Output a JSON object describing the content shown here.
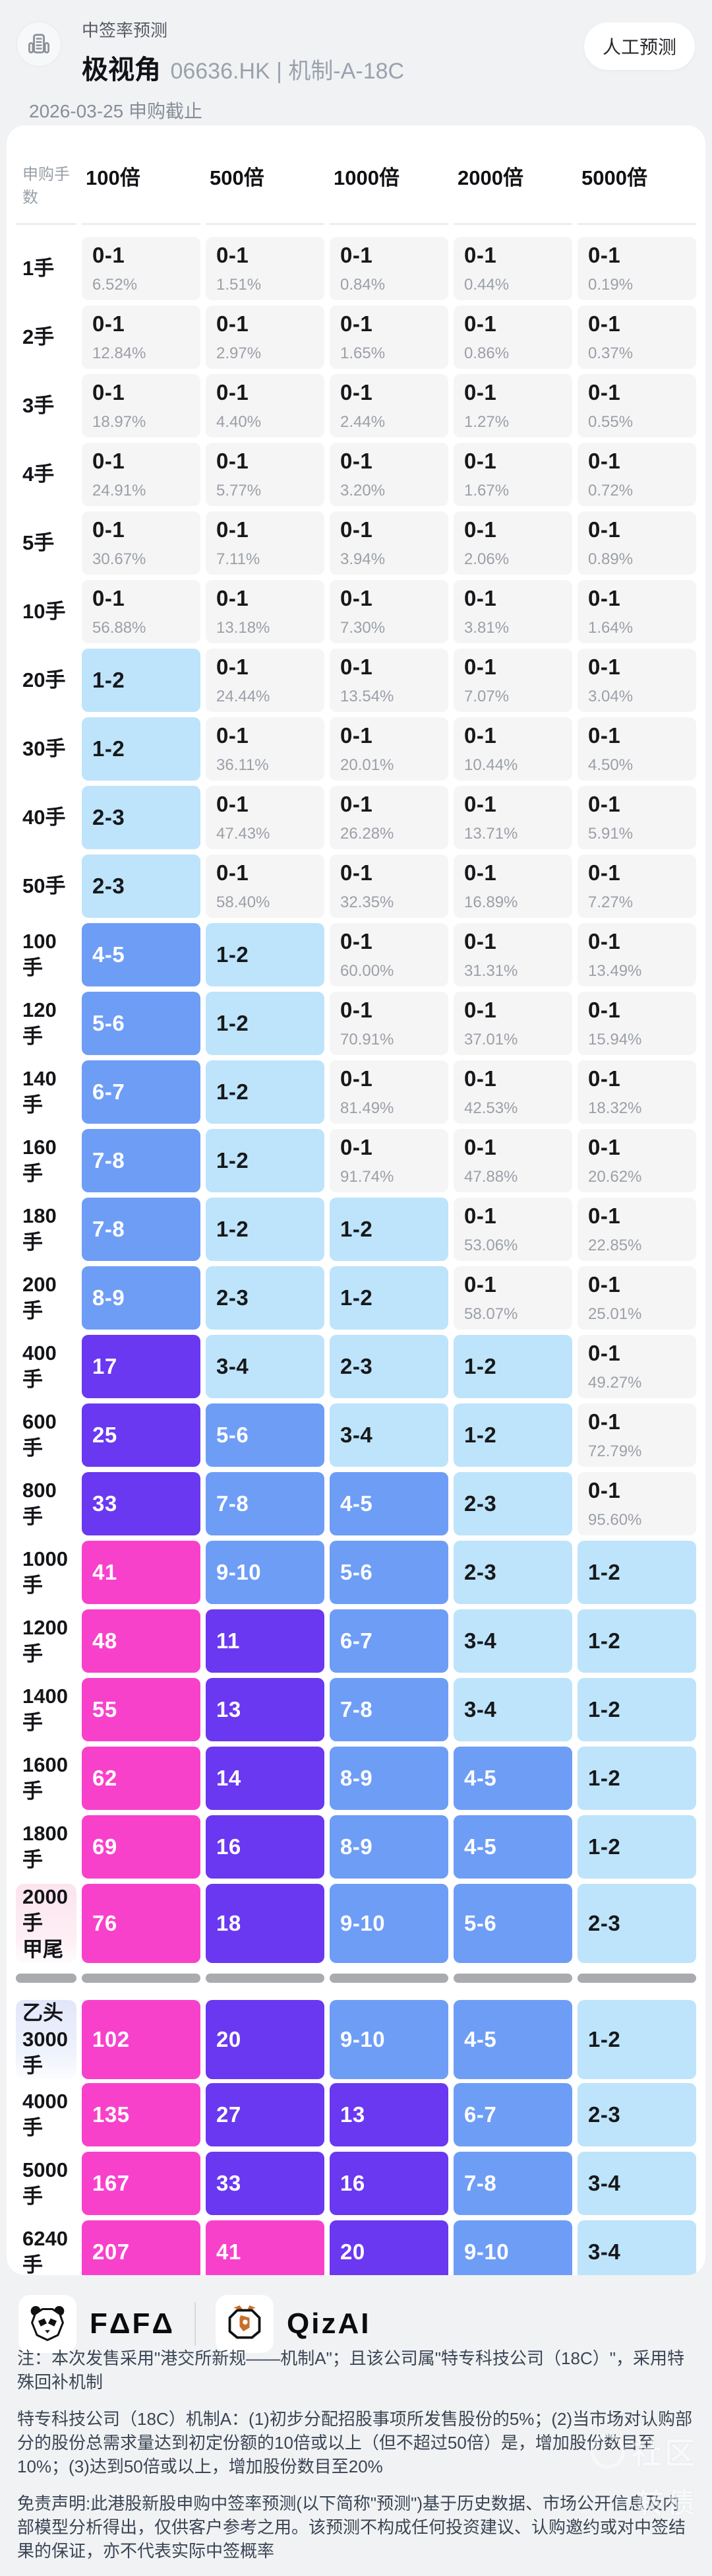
{
  "header": {
    "category": "中签率预测",
    "stock_name": "极视角",
    "stock_info": "06636.HK | 机制-A-18C",
    "deadline": "2026-03-25 申购截止",
    "badge": "人工预测"
  },
  "table": {
    "row_header_label": "申购手数",
    "columns": [
      "100倍",
      "500倍",
      "1000倍",
      "2000倍",
      "5000倍"
    ],
    "rows": [
      {
        "label": [
          "1手"
        ],
        "cells": [
          [
            "0-1",
            "6.52%",
            "g"
          ],
          [
            "0-1",
            "1.51%",
            "g"
          ],
          [
            "0-1",
            "0.84%",
            "g"
          ],
          [
            "0-1",
            "0.44%",
            "g"
          ],
          [
            "0-1",
            "0.19%",
            "g"
          ]
        ]
      },
      {
        "label": [
          "2手"
        ],
        "cells": [
          [
            "0-1",
            "12.84%",
            "g"
          ],
          [
            "0-1",
            "2.97%",
            "g"
          ],
          [
            "0-1",
            "1.65%",
            "g"
          ],
          [
            "0-1",
            "0.86%",
            "g"
          ],
          [
            "0-1",
            "0.37%",
            "g"
          ]
        ]
      },
      {
        "label": [
          "3手"
        ],
        "cells": [
          [
            "0-1",
            "18.97%",
            "g"
          ],
          [
            "0-1",
            "4.40%",
            "g"
          ],
          [
            "0-1",
            "2.44%",
            "g"
          ],
          [
            "0-1",
            "1.27%",
            "g"
          ],
          [
            "0-1",
            "0.55%",
            "g"
          ]
        ]
      },
      {
        "label": [
          "4手"
        ],
        "cells": [
          [
            "0-1",
            "24.91%",
            "g"
          ],
          [
            "0-1",
            "5.77%",
            "g"
          ],
          [
            "0-1",
            "3.20%",
            "g"
          ],
          [
            "0-1",
            "1.67%",
            "g"
          ],
          [
            "0-1",
            "0.72%",
            "g"
          ]
        ]
      },
      {
        "label": [
          "5手"
        ],
        "cells": [
          [
            "0-1",
            "30.67%",
            "g"
          ],
          [
            "0-1",
            "7.11%",
            "g"
          ],
          [
            "0-1",
            "3.94%",
            "g"
          ],
          [
            "0-1",
            "2.06%",
            "g"
          ],
          [
            "0-1",
            "0.89%",
            "g"
          ]
        ]
      },
      {
        "label": [
          "10手"
        ],
        "cells": [
          [
            "0-1",
            "56.88%",
            "g"
          ],
          [
            "0-1",
            "13.18%",
            "g"
          ],
          [
            "0-1",
            "7.30%",
            "g"
          ],
          [
            "0-1",
            "3.81%",
            "g"
          ],
          [
            "0-1",
            "1.64%",
            "g"
          ]
        ]
      },
      {
        "label": [
          "20手"
        ],
        "cells": [
          [
            "1-2",
            "",
            "lb"
          ],
          [
            "0-1",
            "24.44%",
            "g"
          ],
          [
            "0-1",
            "13.54%",
            "g"
          ],
          [
            "0-1",
            "7.07%",
            "g"
          ],
          [
            "0-1",
            "3.04%",
            "g"
          ]
        ]
      },
      {
        "label": [
          "30手"
        ],
        "cells": [
          [
            "1-2",
            "",
            "lb"
          ],
          [
            "0-1",
            "36.11%",
            "g"
          ],
          [
            "0-1",
            "20.01%",
            "g"
          ],
          [
            "0-1",
            "10.44%",
            "g"
          ],
          [
            "0-1",
            "4.50%",
            "g"
          ]
        ]
      },
      {
        "label": [
          "40手"
        ],
        "cells": [
          [
            "2-3",
            "",
            "lb"
          ],
          [
            "0-1",
            "47.43%",
            "g"
          ],
          [
            "0-1",
            "26.28%",
            "g"
          ],
          [
            "0-1",
            "13.71%",
            "g"
          ],
          [
            "0-1",
            "5.91%",
            "g"
          ]
        ]
      },
      {
        "label": [
          "50手"
        ],
        "cells": [
          [
            "2-3",
            "",
            "lb"
          ],
          [
            "0-1",
            "58.40%",
            "g"
          ],
          [
            "0-1",
            "32.35%",
            "g"
          ],
          [
            "0-1",
            "16.89%",
            "g"
          ],
          [
            "0-1",
            "7.27%",
            "g"
          ]
        ]
      },
      {
        "label": [
          "100手"
        ],
        "cells": [
          [
            "4-5",
            "",
            "mb"
          ],
          [
            "1-2",
            "",
            "lb"
          ],
          [
            "0-1",
            "60.00%",
            "g"
          ],
          [
            "0-1",
            "31.31%",
            "g"
          ],
          [
            "0-1",
            "13.49%",
            "g"
          ]
        ]
      },
      {
        "label": [
          "120手"
        ],
        "cells": [
          [
            "5-6",
            "",
            "mb"
          ],
          [
            "1-2",
            "",
            "lb"
          ],
          [
            "0-1",
            "70.91%",
            "g"
          ],
          [
            "0-1",
            "37.01%",
            "g"
          ],
          [
            "0-1",
            "15.94%",
            "g"
          ]
        ]
      },
      {
        "label": [
          "140手"
        ],
        "cells": [
          [
            "6-7",
            "",
            "mb"
          ],
          [
            "1-2",
            "",
            "lb"
          ],
          [
            "0-1",
            "81.49%",
            "g"
          ],
          [
            "0-1",
            "42.53%",
            "g"
          ],
          [
            "0-1",
            "18.32%",
            "g"
          ]
        ]
      },
      {
        "label": [
          "160手"
        ],
        "cells": [
          [
            "7-8",
            "",
            "mb"
          ],
          [
            "1-2",
            "",
            "lb"
          ],
          [
            "0-1",
            "91.74%",
            "g"
          ],
          [
            "0-1",
            "47.88%",
            "g"
          ],
          [
            "0-1",
            "20.62%",
            "g"
          ]
        ]
      },
      {
        "label": [
          "180手"
        ],
        "cells": [
          [
            "7-8",
            "",
            "mb"
          ],
          [
            "1-2",
            "",
            "lb"
          ],
          [
            "1-2",
            "",
            "lb"
          ],
          [
            "0-1",
            "53.06%",
            "g"
          ],
          [
            "0-1",
            "22.85%",
            "g"
          ]
        ]
      },
      {
        "label": [
          "200手"
        ],
        "cells": [
          [
            "8-9",
            "",
            "mb"
          ],
          [
            "2-3",
            "",
            "lb"
          ],
          [
            "1-2",
            "",
            "lb"
          ],
          [
            "0-1",
            "58.07%",
            "g"
          ],
          [
            "0-1",
            "25.01%",
            "g"
          ]
        ]
      },
      {
        "label": [
          "400手"
        ],
        "cells": [
          [
            "17",
            "",
            "pu"
          ],
          [
            "3-4",
            "",
            "lb"
          ],
          [
            "2-3",
            "",
            "lb"
          ],
          [
            "1-2",
            "",
            "lb"
          ],
          [
            "0-1",
            "49.27%",
            "g"
          ]
        ]
      },
      {
        "label": [
          "600手"
        ],
        "cells": [
          [
            "25",
            "",
            "pu"
          ],
          [
            "5-6",
            "",
            "mb"
          ],
          [
            "3-4",
            "",
            "lb"
          ],
          [
            "1-2",
            "",
            "lb"
          ],
          [
            "0-1",
            "72.79%",
            "g"
          ]
        ]
      },
      {
        "label": [
          "800手"
        ],
        "cells": [
          [
            "33",
            "",
            "pu"
          ],
          [
            "7-8",
            "",
            "mb"
          ],
          [
            "4-5",
            "",
            "mb"
          ],
          [
            "2-3",
            "",
            "lb"
          ],
          [
            "0-1",
            "95.60%",
            "g"
          ]
        ]
      },
      {
        "label": [
          "1000手"
        ],
        "cells": [
          [
            "41",
            "",
            "mg"
          ],
          [
            "9-10",
            "",
            "mb"
          ],
          [
            "5-6",
            "",
            "mb"
          ],
          [
            "2-3",
            "",
            "lb"
          ],
          [
            "1-2",
            "",
            "lb"
          ]
        ]
      },
      {
        "label": [
          "1200手"
        ],
        "cells": [
          [
            "48",
            "",
            "mg"
          ],
          [
            "11",
            "",
            "pu"
          ],
          [
            "6-7",
            "",
            "mb"
          ],
          [
            "3-4",
            "",
            "lb"
          ],
          [
            "1-2",
            "",
            "lb"
          ]
        ]
      },
      {
        "label": [
          "1400手"
        ],
        "cells": [
          [
            "55",
            "",
            "mg"
          ],
          [
            "13",
            "",
            "pu"
          ],
          [
            "7-8",
            "",
            "mb"
          ],
          [
            "3-4",
            "",
            "lb"
          ],
          [
            "1-2",
            "",
            "lb"
          ]
        ]
      },
      {
        "label": [
          "1600手"
        ],
        "cells": [
          [
            "62",
            "",
            "mg"
          ],
          [
            "14",
            "",
            "pu"
          ],
          [
            "8-9",
            "",
            "mb"
          ],
          [
            "4-5",
            "",
            "mb"
          ],
          [
            "1-2",
            "",
            "lb"
          ]
        ]
      },
      {
        "label": [
          "1800手"
        ],
        "cells": [
          [
            "69",
            "",
            "mg"
          ],
          [
            "16",
            "",
            "pu"
          ],
          [
            "8-9",
            "",
            "mb"
          ],
          [
            "4-5",
            "",
            "mb"
          ],
          [
            "1-2",
            "",
            "lb"
          ]
        ]
      },
      {
        "label": [
          "2000手",
          "甲尾"
        ],
        "hl": "pink",
        "cells": [
          [
            "76",
            "",
            "mg"
          ],
          [
            "18",
            "",
            "pu"
          ],
          [
            "9-10",
            "",
            "mb"
          ],
          [
            "5-6",
            "",
            "mb"
          ],
          [
            "2-3",
            "",
            "lb"
          ]
        ]
      },
      {
        "divider": true
      },
      {
        "label": [
          "乙头",
          "3000手"
        ],
        "hl": "blue",
        "cells": [
          [
            "102",
            "",
            "mg"
          ],
          [
            "20",
            "",
            "pu"
          ],
          [
            "9-10",
            "",
            "mb"
          ],
          [
            "4-5",
            "",
            "mb"
          ],
          [
            "1-2",
            "",
            "lb"
          ]
        ]
      },
      {
        "label": [
          "4000手"
        ],
        "cells": [
          [
            "135",
            "",
            "mg"
          ],
          [
            "27",
            "",
            "pu"
          ],
          [
            "13",
            "",
            "pu"
          ],
          [
            "6-7",
            "",
            "mb"
          ],
          [
            "2-3",
            "",
            "lb"
          ]
        ]
      },
      {
        "label": [
          "5000手"
        ],
        "cells": [
          [
            "167",
            "",
            "mg"
          ],
          [
            "33",
            "",
            "pu"
          ],
          [
            "16",
            "",
            "pu"
          ],
          [
            "7-8",
            "",
            "mb"
          ],
          [
            "3-4",
            "",
            "lb"
          ]
        ]
      },
      {
        "label": [
          "6240手"
        ],
        "cells": [
          [
            "207",
            "",
            "mg"
          ],
          [
            "41",
            "",
            "mg"
          ],
          [
            "20",
            "",
            "pu"
          ],
          [
            "9-10",
            "",
            "mb"
          ],
          [
            "3-4",
            "",
            "lb"
          ]
        ]
      }
    ]
  },
  "colors": {
    "g": "#f5f5f6",
    "lb": "#bde4fb",
    "mb": "#6e9df6",
    "pu": "#6a38f0",
    "mg": "#f841cb",
    "value_dark": "#17181a",
    "value_white": "#ffffff",
    "percent_gray": "#9ba0a7"
  },
  "footer": {
    "brand1": "FΔFΔ",
    "brand2": "QizAI",
    "note1": "注：本次发售采用\"港交所新规——机制A\"；且该公司属\"特专科技公司（18C）\"，采用特殊回补机制",
    "note2": "特专科技公司（18C）机制A：(1)初步分配招股事项所发售股份的5%；(2)当市场对认购部分的股份总需求量达到初定份额的10倍或以上（但不超过50倍）是，增加股份数目至10%；(3)达到50倍或以上，增加股份数目至20%",
    "disclaimer": "免责声明:此港股新股申购中签率预测(以下简称\"预测\")基于历史数据、市场公开信息及内部模型分析得出，仅供客户参考之用。该预测不构成任何投资建议、认购邀约或对中签结果的保证，亦不代表实际中签概率"
  },
  "watermark": {
    "line1": "社区",
    "line2": "转债"
  }
}
